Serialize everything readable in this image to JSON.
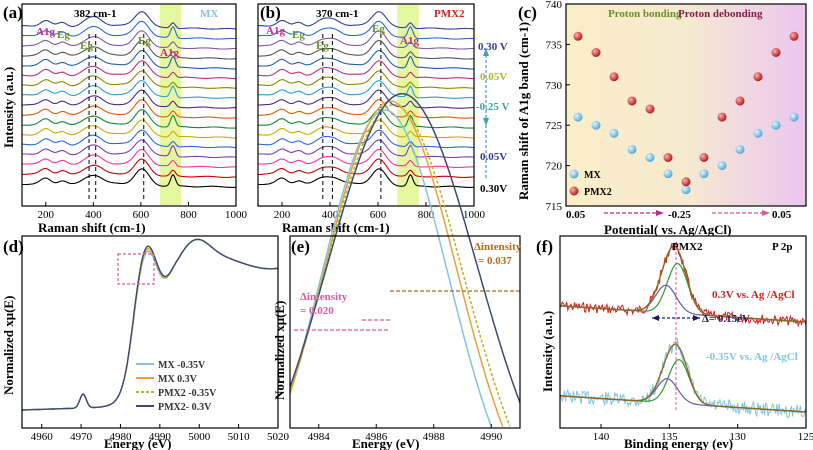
{
  "colors": {
    "mx": "#82c4e0",
    "pmx2": "#d42020",
    "green": "#6c8f2a",
    "orange": "#e8a23a",
    "yellowgreen": "#b4b42a",
    "navy": "#3a4a78",
    "magenta": "#c02a8a",
    "brown": "#b06a18",
    "pink": "#d85a9a",
    "teal": "#40a0b0",
    "highlight": "#e6f7a0"
  },
  "raman_colors": [
    "#000000",
    "#cc0000",
    "#ff3399",
    "#7b3fb0",
    "#2a6bd6",
    "#d4a800",
    "#0e8a3a",
    "#e05a00",
    "#4b2a8c",
    "#2a9fd6",
    "#8a8a00",
    "#c0307a",
    "#1f5fa8",
    "#555555",
    "#7d5aa6",
    "#2a6bd6",
    "#2f3f9a"
  ],
  "chart_data": [
    {
      "id": "a",
      "type": "line",
      "panel_label": "(a)",
      "title": "MX",
      "wavenumber_label": "382 cm-1",
      "xlabel": "Raman shift (cm-1)",
      "ylabel": "Intensity (a.u.)",
      "xlim": [
        100,
        1000
      ],
      "xticks": [
        "200",
        "400",
        "600",
        "800",
        "1000"
      ],
      "peak_labels": [
        "A1g",
        "Eg",
        "Eg",
        "Eg",
        "A1g"
      ],
      "dashed_lines_cm": [
        382,
        410,
        612
      ],
      "highlight_cm": [
        680,
        770
      ],
      "num_spectra": 17
    },
    {
      "id": "b",
      "type": "line",
      "panel_label": "(b)",
      "title": "PMX2",
      "wavenumber_label": "370 cm-1",
      "xlabel": "Raman shift (cm-1)",
      "ylabel": "",
      "xlim": [
        100,
        1000
      ],
      "xticks": [
        "200",
        "400",
        "600",
        "800",
        "1000"
      ],
      "peak_labels": [
        "A1g",
        "Eg",
        "Eg",
        "Eg",
        "A1g"
      ],
      "potentials": [
        "0.30 V",
        "0.05V",
        "-0.25 V",
        "0.05V",
        "0.30V"
      ],
      "dashed_lines_cm": [
        370,
        410,
        612
      ],
      "highlight_cm": [
        680,
        770
      ],
      "num_spectra": 17
    },
    {
      "id": "c",
      "type": "scatter",
      "panel_label": "(c)",
      "xlabel": "Potential( vs. Ag/AgCl)",
      "ylabel": "Raman shift of A1g band (cm-1)",
      "ylim": [
        715,
        740
      ],
      "yticks": [
        "715",
        "720",
        "725",
        "730",
        "735",
        "740"
      ],
      "xtick_labels": [
        "0.05",
        "-0.25",
        "0.05"
      ],
      "region_labels": [
        "Proton bonding",
        "Proton debonding"
      ],
      "series": [
        {
          "name": "MX",
          "values": [
            726,
            725,
            724,
            722,
            721,
            719,
            717,
            719,
            720,
            722,
            724,
            725,
            726
          ]
        },
        {
          "name": "PMX2",
          "values": [
            736,
            734,
            731,
            728,
            727,
            721,
            718,
            721,
            726,
            728,
            731,
            734,
            736
          ]
        }
      ]
    },
    {
      "id": "d",
      "type": "line",
      "panel_label": "(d)",
      "xlabel": "Energy (eV)",
      "ylabel": "Normalized xμ(E)",
      "xlim": [
        4955,
        5020
      ],
      "xticks": [
        "4960",
        "4970",
        "4980",
        "4990",
        "5000",
        "5010",
        "5020"
      ],
      "series": [
        {
          "name": "MX -0.35V"
        },
        {
          "name": "MX 0.3V"
        },
        {
          "name": "PMX2 -0.35V"
        },
        {
          "name": "PMX2- 0.3V"
        }
      ]
    },
    {
      "id": "e",
      "type": "line",
      "panel_label": "(e)",
      "xlabel": "Energy (eV)",
      "ylabel": "Normalized xμ(E)",
      "xlim": [
        4983,
        4991
      ],
      "xticks": [
        "4984",
        "4986",
        "4988",
        "4990"
      ],
      "delta_small_label": "Δintensity",
      "delta_small_value": "= 0.020",
      "delta_large_label": "Δintensity",
      "delta_large_value": "= 0.037"
    },
    {
      "id": "f",
      "type": "line",
      "panel_label": "(f)",
      "title": "PMX2",
      "subtitle": "P 2p",
      "xlabel": "Binding energy (ev)",
      "ylabel": "Intensity (a.u.)",
      "xlim": [
        143,
        125
      ],
      "xticks": [
        "140",
        "135",
        "130",
        "125"
      ],
      "trace_labels": [
        "0.3V vs. Ag /AgCl",
        "-0.35V vs. Ag /AgCl"
      ],
      "shift_label": "Δ= 0.15eV"
    }
  ]
}
